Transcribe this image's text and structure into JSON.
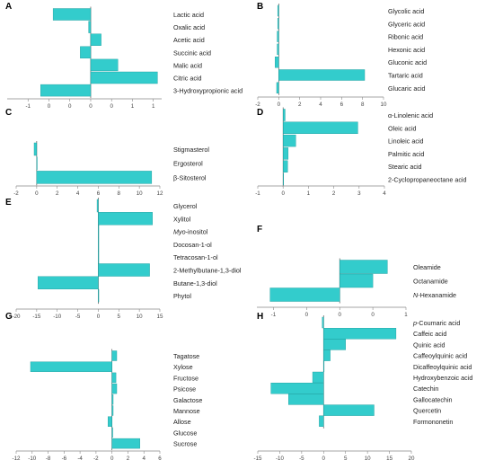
{
  "colors": {
    "bar": "#33CCCC",
    "bar_edge": "#1a9a9a",
    "axis": "#888888",
    "text": "#222222"
  },
  "chart_data": [
    {
      "panel": "A",
      "type": "bar",
      "orientation": "horizontal",
      "categories": [
        "Lactic acid",
        "Oxalic acid",
        "Acetic acid",
        "Succinic acid",
        "Malic acid",
        "Citric acid",
        "3-Hydroxypropionic acid"
      ],
      "values": [
        -0.9,
        -0.05,
        0.25,
        -0.25,
        0.65,
        1.6,
        -1.2
      ],
      "xlim": [
        -2,
        1.7
      ],
      "xticks": [
        -1.5,
        -1,
        -0.5,
        0,
        0.5,
        1,
        1.5
      ],
      "xticklabels": [
        "-1",
        "0",
        "0",
        "0",
        "0",
        "1",
        "1"
      ]
    },
    {
      "panel": "B",
      "type": "bar",
      "orientation": "horizontal",
      "categories": [
        "Glycolic acid",
        "Glyceric acid",
        "Ribonic acid",
        "Hexonic acid",
        "Gluconic acid",
        "Tartaric acid",
        "Glucaric acid"
      ],
      "values": [
        -0.1,
        -0.1,
        -0.15,
        -0.15,
        -0.35,
        8.2,
        -0.2
      ],
      "xlim": [
        -2,
        10
      ],
      "xticks": [
        -2,
        0,
        2,
        4,
        6,
        8,
        10
      ],
      "xticklabels": [
        "-2",
        "0",
        "2",
        "4",
        "6",
        "8",
        "10"
      ]
    },
    {
      "panel": "C",
      "type": "bar",
      "orientation": "horizontal",
      "categories": [
        "Stigmasterol",
        "Ergosterol",
        "β-Sitosterol"
      ],
      "values": [
        -0.25,
        0.0,
        11.2
      ],
      "xlim": [
        -2,
        12
      ],
      "xticks": [
        -2,
        0,
        2,
        4,
        6,
        8,
        10,
        12
      ],
      "xticklabels": [
        "-2",
        "0",
        "2",
        "4",
        "6",
        "8",
        "10",
        "12"
      ]
    },
    {
      "panel": "D",
      "type": "bar",
      "orientation": "horizontal",
      "categories": [
        "α-Linolenic acid",
        "Oleic acid",
        "Linoleic acid",
        "Palmitic acid",
        "Stearic acid",
        "2-Cyclopropaneoctane acid"
      ],
      "values": [
        0.08,
        2.95,
        0.5,
        0.2,
        0.18,
        0.02
      ],
      "xlim": [
        -1,
        4
      ],
      "xticks": [
        -1,
        0,
        1,
        2,
        3,
        4
      ],
      "xticklabels": [
        "-1",
        "0",
        "1",
        "2",
        "3",
        "4"
      ]
    },
    {
      "panel": "E",
      "type": "bar",
      "orientation": "horizontal",
      "categories": [
        "Glycerol",
        "Xylitol",
        "Myo-inositol",
        "Docosan-1-ol",
        "Tetracosan-1-ol",
        "2-Methylbutane-1,3-diol",
        "Butane-1,3-diol",
        "Phytol"
      ],
      "values": [
        -0.3,
        13.2,
        0.0,
        0.0,
        0.0,
        12.5,
        -14.7,
        0.0
      ],
      "xlim": [
        -20,
        15
      ],
      "xticks": [
        -20,
        -15,
        -10,
        -5,
        0,
        5,
        10,
        15
      ],
      "xticklabels": [
        "-20",
        "-15",
        "-10",
        "-5",
        "0",
        "5",
        "10",
        "15"
      ]
    },
    {
      "panel": "F",
      "type": "bar",
      "orientation": "horizontal",
      "categories": [
        "Oleamide",
        "Octanamide",
        "N-Hexanamide"
      ],
      "values": [
        0.72,
        0.5,
        -1.05
      ],
      "xlim": [
        -1.25,
        1.0
      ],
      "xticks": [
        -1,
        -0.5,
        0,
        0.5,
        1
      ],
      "xticklabels": [
        "-1",
        "0",
        "0",
        "0",
        "1"
      ]
    },
    {
      "panel": "G",
      "type": "bar",
      "orientation": "horizontal",
      "categories": [
        "Tagatose",
        "Xylose",
        "Fructose",
        "Psicose",
        "Galactose",
        "Mannose",
        "Allose",
        "Glucose",
        "Sucrose"
      ],
      "values": [
        0.6,
        -10.2,
        0.5,
        0.6,
        0.15,
        0.15,
        -0.5,
        0.1,
        3.5
      ],
      "xlim": [
        -12,
        6
      ],
      "xticks": [
        -12,
        -10,
        -8,
        -6,
        -4,
        -2,
        0,
        2,
        4,
        6
      ],
      "xticklabels": [
        "-12",
        "-10",
        "-8",
        "-6",
        "-4",
        "-2",
        "0",
        "2",
        "4",
        "6"
      ]
    },
    {
      "panel": "H",
      "type": "bar",
      "orientation": "horizontal",
      "categories": [
        "p-Coumaric acid",
        "Caffeic acid",
        "Quinic acid",
        "Caffeoylquinic  acid",
        "Dicaffeoylquinic acid",
        "Hydroxybenzoic acid",
        "Catechin",
        "Gallocatechin",
        "Quercetin",
        "Formononetin"
      ],
      "values": [
        -0.3,
        16.5,
        5.0,
        1.5,
        0.0,
        -2.5,
        -12.0,
        -8.0,
        11.5,
        -1.0
      ],
      "xlim": [
        -15,
        20
      ],
      "xticks": [
        -15,
        -10,
        -5,
        0,
        5,
        10,
        15,
        20
      ],
      "xticklabels": [
        "-15",
        "-10",
        "-5",
        "0",
        "5",
        "10",
        "15",
        "20"
      ]
    }
  ]
}
